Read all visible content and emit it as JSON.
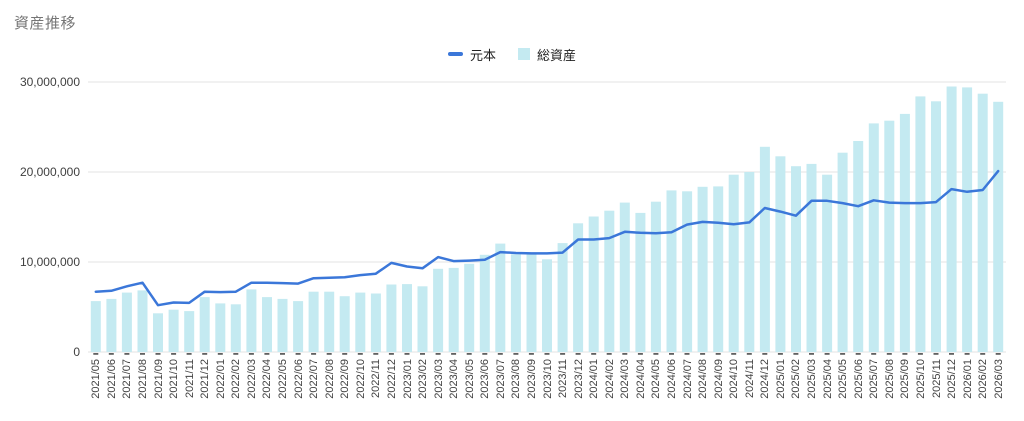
{
  "title": "資産推移",
  "colors": {
    "background": "#ffffff",
    "grid": "#e3e3e3",
    "tick": "#616161",
    "title_text": "#757575",
    "axis_text": "#424242",
    "line_series": "#3b77d9",
    "bar_series": "#c4eaf1"
  },
  "chart_data": {
    "type": "bar",
    "subtype": "combo-line-and-bar",
    "title": "資産推移",
    "xlabel": "",
    "ylabel": "",
    "ylim": [
      0,
      30000000
    ],
    "yticks": [
      0,
      10000000,
      20000000,
      30000000
    ],
    "ytick_labels": [
      "0",
      "10,000,000",
      "20,000,000",
      "30,000,000"
    ],
    "grid": true,
    "legend_position": "top-center",
    "categories": [
      "2021/05",
      "2021/06",
      "2021/07",
      "2021/08",
      "2021/09",
      "2021/10",
      "2021/11",
      "2021/12",
      "2022/01",
      "2022/02",
      "2022/03",
      "2022/04",
      "2022/05",
      "2022/06",
      "2022/07",
      "2022/08",
      "2022/09",
      "2022/10",
      "2022/11",
      "2022/12",
      "2023/01",
      "2023/02",
      "2023/03",
      "2023/04",
      "2023/05",
      "2023/06",
      "2023/07",
      "2023/08",
      "2023/09",
      "2023/10",
      "2023/11",
      "2023/12",
      "2024/01",
      "2024/02",
      "2024/03",
      "2024/04",
      "2024/05",
      "2024/06",
      "2024/07",
      "2024/08",
      "2024/09",
      "2024/10",
      "2024/11",
      "2024/12",
      "2025/01",
      "2025/02",
      "2025/03",
      "2025/04",
      "2025/05",
      "2025/06",
      "2025/07",
      "2025/08",
      "2025/09",
      "2025/10",
      "2025/11",
      "2025/12",
      "2026/01",
      "2026/02",
      "2026/03"
    ],
    "series": [
      {
        "name": "元本",
        "type": "line",
        "color": "#3b77d9",
        "values": [
          6700000,
          6800000,
          7300000,
          7700000,
          5200000,
          5500000,
          5450000,
          6700000,
          6650000,
          6700000,
          7700000,
          7700000,
          7650000,
          7600000,
          8200000,
          8250000,
          8300000,
          8550000,
          8700000,
          9900000,
          9500000,
          9300000,
          10550000,
          10100000,
          10150000,
          10250000,
          11100000,
          11000000,
          10950000,
          10950000,
          11050000,
          12500000,
          12500000,
          12650000,
          13350000,
          13250000,
          13200000,
          13300000,
          14150000,
          14450000,
          14350000,
          14200000,
          14400000,
          16000000,
          15600000,
          15150000,
          16800000,
          16800000,
          16550000,
          16200000,
          16850000,
          16600000,
          16550000,
          16550000,
          16650000,
          18100000,
          17800000,
          18000000,
          20100000
        ]
      },
      {
        "name": "総資産",
        "type": "bar",
        "color": "#c4eaf1",
        "values": [
          5650000,
          5900000,
          6600000,
          6850000,
          4300000,
          4700000,
          4550000,
          6100000,
          5400000,
          5300000,
          6950000,
          6100000,
          5900000,
          5650000,
          6700000,
          6700000,
          6200000,
          6600000,
          6500000,
          7500000,
          7550000,
          7300000,
          9250000,
          9350000,
          9800000,
          10800000,
          12050000,
          10850000,
          10900000,
          10300000,
          12100000,
          14300000,
          15050000,
          15700000,
          16600000,
          15450000,
          16700000,
          17950000,
          17850000,
          18350000,
          18400000,
          19700000,
          20000000,
          22800000,
          21750000,
          20650000,
          20900000,
          19700000,
          22150000,
          23450000,
          25400000,
          25700000,
          26450000,
          28400000,
          27850000,
          29500000,
          29400000,
          28700000,
          27800000
        ]
      }
    ]
  }
}
